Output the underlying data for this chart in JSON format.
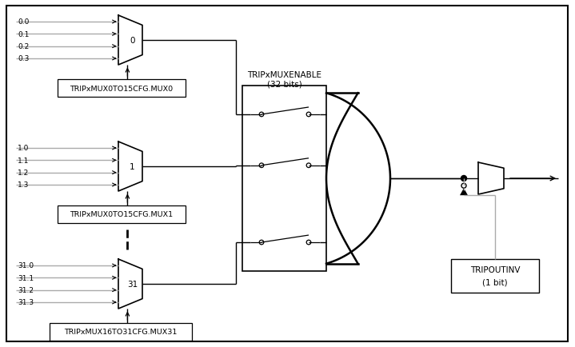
{
  "bg_color": "#ffffff",
  "border_color": "#000000",
  "line_color": "#000000",
  "gray_color": "#aaaaaa",
  "cfg_labels": [
    "TRIPxMUX0TO15CFG.MUX0",
    "TRIPxMUX0TO15CFG.MUX1",
    "TRIPxMUX16TO31CFG.MUX31"
  ],
  "enable_label_1": "TRIPxMUXENABLE",
  "enable_label_2": "(32 bits)",
  "tripout_label_1": "TRIPOUTINV",
  "tripout_label_2": "(1 bit)",
  "mux_labels": [
    "0",
    "1",
    "31"
  ],
  "input_groups_0": [
    "0.0",
    "0.1",
    "0.2",
    "0.3"
  ],
  "input_groups_1": [
    "1.0",
    "1.1",
    "1.2",
    "1.3"
  ],
  "input_groups_31": [
    "31.0",
    "31.1",
    "31.2",
    "31.3"
  ]
}
